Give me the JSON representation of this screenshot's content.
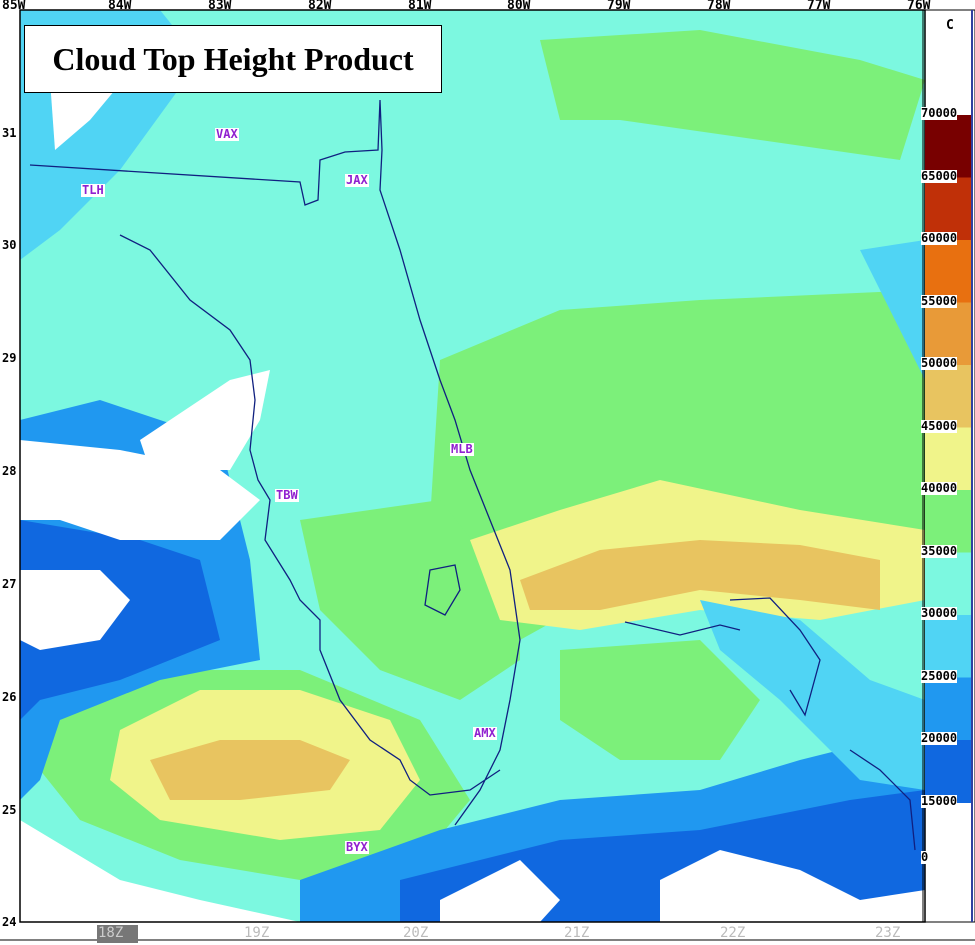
{
  "title": "Cloud Top Height Product",
  "units": "C",
  "lon_labels": [
    "85W",
    "84W",
    "83W",
    "82W",
    "81W",
    "80W",
    "79W",
    "78W",
    "77W",
    "76W"
  ],
  "lat_labels": [
    "31",
    "30",
    "29",
    "28",
    "27",
    "26",
    "25",
    "24"
  ],
  "stations": [
    "VAX",
    "TLH",
    "JAX",
    "MLB",
    "TBW",
    "AMX",
    "BYX"
  ],
  "colorbar": {
    "labels": [
      "70000",
      "65000",
      "60000",
      "55000",
      "50000",
      "45000",
      "40000",
      "35000",
      "30000",
      "25000",
      "20000",
      "15000",
      "0"
    ],
    "colors": [
      "#780000",
      "#c03008",
      "#e87010",
      "#e89a38",
      "#e8c460",
      "#f0f48a",
      "#7cf07a",
      "#7cf8e0",
      "#50d4f4",
      "#2098f0",
      "#1068e0"
    ]
  },
  "time_labels": [
    "18Z",
    "19Z",
    "20Z",
    "21Z",
    "22Z",
    "23Z"
  ],
  "active_time": "18Z"
}
